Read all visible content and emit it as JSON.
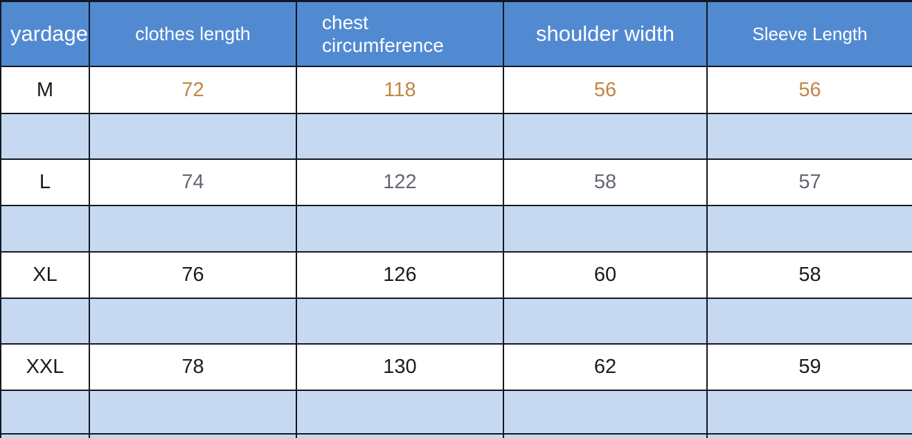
{
  "table": {
    "header": {
      "cells": [
        "yardage",
        "clothes length",
        "chest circumference",
        "shoulder width",
        "Sleeve Length"
      ]
    },
    "body": [
      [
        "M",
        "72",
        "118",
        "56",
        "56"
      ],
      [
        "L",
        "74",
        "122",
        "58",
        "57"
      ],
      [
        "XL",
        "76",
        "126",
        "60",
        "58"
      ],
      [
        "XXL",
        "78",
        "130",
        "62",
        "59"
      ]
    ],
    "colors": {
      "header_background": "#528ad2",
      "header_text": "#ffffff",
      "spacer_row_background": "#c7d9f1",
      "data_row_background": "#ffffff",
      "border": "#13161f",
      "m_row_values": "#c08545",
      "l_row_values": "#6b6173",
      "xl_xxl_row_values": "#1b1b1b"
    }
  },
  "chart_data": {
    "type": "table",
    "columns": [
      "yardage",
      "clothes length",
      "chest circumference",
      "shoulder width",
      "Sleeve Length"
    ],
    "rows": [
      {
        "yardage": "M",
        "clothes_length": 72,
        "chest_circumference": 118,
        "shoulder_width": 56,
        "sleeve_length": 56
      },
      {
        "yardage": "L",
        "clothes_length": 74,
        "chest_circumference": 122,
        "shoulder_width": 58,
        "sleeve_length": 57
      },
      {
        "yardage": "XL",
        "clothes_length": 76,
        "chest_circumference": 126,
        "shoulder_width": 60,
        "sleeve_length": 58
      },
      {
        "yardage": "XXL",
        "clothes_length": 78,
        "chest_circumference": 130,
        "shoulder_width": 62,
        "sleeve_length": 59
      }
    ],
    "layout_hints": {
      "header_style": "blue background, white text",
      "spacer_rows_between_data_rows": true,
      "right_and_bottom_edges_cropped": true
    }
  }
}
